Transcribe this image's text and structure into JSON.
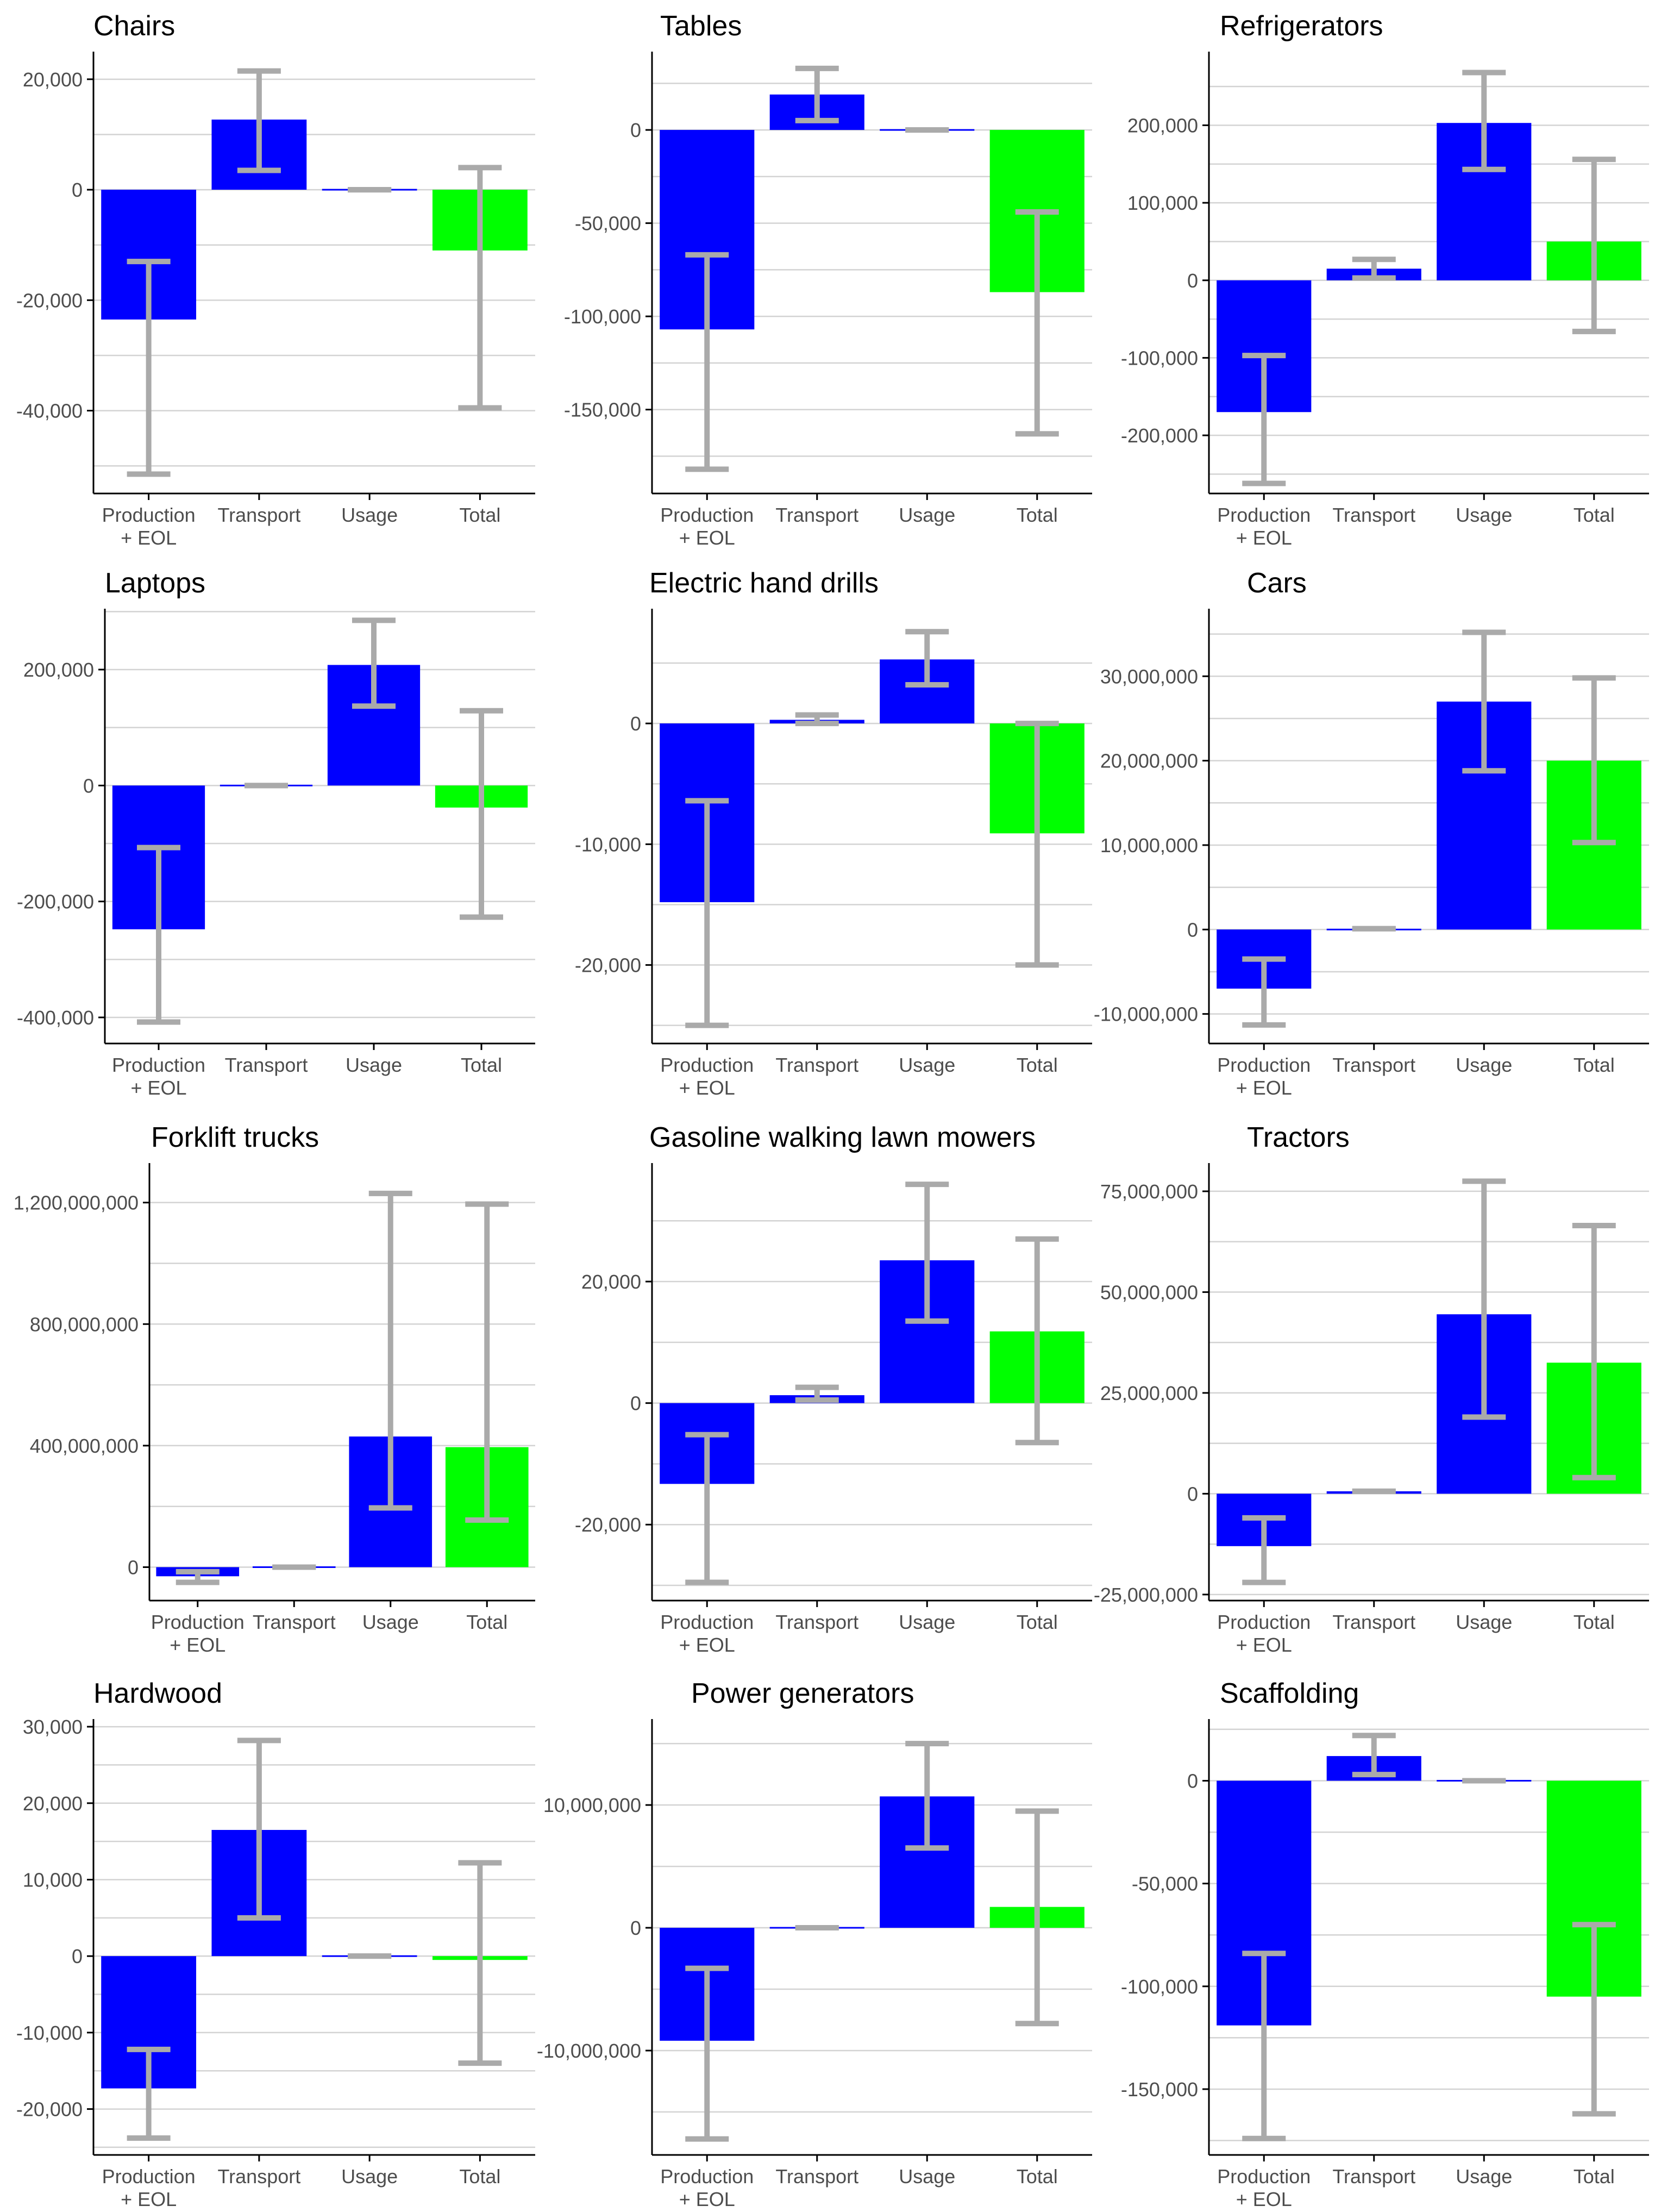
{
  "chart_data": [
    {
      "type": "bar",
      "title": "Chairs",
      "categories": [
        "Production\n+ EOL",
        "Transport",
        "Usage",
        "Total"
      ],
      "values": [
        -23500,
        12700,
        0,
        -11000
      ],
      "error_low": [
        -51500,
        3500,
        0,
        -39500
      ],
      "error_high": [
        -13000,
        21500,
        0,
        4000
      ],
      "colors": [
        "#0000ff",
        "#0000ff",
        "#0000ff",
        "#00ff00"
      ],
      "yticks": [
        -40000,
        -20000,
        0,
        20000
      ],
      "ytick_labels": [
        "-40,000",
        "-20,000",
        "0",
        "20,000"
      ],
      "ylim": [
        -55000,
        25000
      ]
    },
    {
      "type": "bar",
      "title": "Tables",
      "categories": [
        "Production\n+ EOL",
        "Transport",
        "Usage",
        "Total"
      ],
      "values": [
        -107000,
        19000,
        0,
        -87000
      ],
      "error_low": [
        -182000,
        5000,
        0,
        -163000
      ],
      "error_high": [
        -67000,
        33000,
        0,
        -44000
      ],
      "colors": [
        "#0000ff",
        "#0000ff",
        "#0000ff",
        "#00ff00"
      ],
      "yticks": [
        -150000,
        -100000,
        -50000,
        0
      ],
      "ytick_labels": [
        "-150,000",
        "-100,000",
        "-50,000",
        "0"
      ],
      "ylim": [
        -195000,
        42000
      ]
    },
    {
      "type": "bar",
      "title": "Refrigerators",
      "categories": [
        "Production\n+ EOL",
        "Transport",
        "Usage",
        "Total"
      ],
      "values": [
        -170000,
        15000,
        203000,
        50000
      ],
      "error_low": [
        -262000,
        3000,
        143000,
        -66000
      ],
      "error_high": [
        -97000,
        27000,
        268000,
        156000
      ],
      "colors": [
        "#0000ff",
        "#0000ff",
        "#0000ff",
        "#00ff00"
      ],
      "yticks": [
        -200000,
        -100000,
        0,
        100000,
        200000
      ],
      "ytick_labels": [
        "-200,000",
        "-100,000",
        "0",
        "100,000",
        "200,000"
      ],
      "ylim": [
        -275000,
        295000
      ]
    },
    {
      "type": "bar",
      "title": "Laptops",
      "categories": [
        "Production\n+ EOL",
        "Transport",
        "Usage",
        "Total"
      ],
      "values": [
        -248000,
        0,
        208000,
        -38000
      ],
      "error_low": [
        -408000,
        0,
        137000,
        -227000
      ],
      "error_high": [
        -107000,
        0,
        285000,
        129000
      ],
      "colors": [
        "#0000ff",
        "#0000ff",
        "#0000ff",
        "#00ff00"
      ],
      "yticks": [
        -400000,
        -200000,
        0,
        200000
      ],
      "ytick_labels": [
        "-400,000",
        "-200,000",
        "0",
        "200,000"
      ],
      "ylim": [
        -445000,
        305000
      ]
    },
    {
      "type": "bar",
      "title": "Electric hand drills",
      "categories": [
        "Production\n+ EOL",
        "Transport",
        "Usage",
        "Total"
      ],
      "values": [
        -14800,
        300,
        5300,
        -9100
      ],
      "error_low": [
        -25000,
        0,
        3200,
        -20000
      ],
      "error_high": [
        -6400,
        700,
        7600,
        0
      ],
      "colors": [
        "#0000ff",
        "#0000ff",
        "#0000ff",
        "#00ff00"
      ],
      "yticks": [
        -20000,
        -10000,
        0
      ],
      "ytick_labels": [
        "-20,000",
        "-10,000",
        "0"
      ],
      "ylim": [
        -26500,
        9500
      ]
    },
    {
      "type": "bar",
      "title": "Cars",
      "categories": [
        "Production\n+ EOL",
        "Transport",
        "Usage",
        "Total"
      ],
      "values": [
        -7000000,
        100000,
        27000000,
        20000000
      ],
      "error_low": [
        -11300000,
        100000,
        18800000,
        10300000
      ],
      "error_high": [
        -3500000,
        100000,
        35200000,
        29800000
      ],
      "colors": [
        "#0000ff",
        "#0000ff",
        "#0000ff",
        "#00ff00"
      ],
      "yticks": [
        -10000000,
        0,
        10000000,
        20000000,
        30000000
      ],
      "ytick_labels": [
        "-10,000,000",
        "0",
        "10,000,000",
        "20,000,000",
        "30,000,000"
      ],
      "ylim": [
        -13500000,
        38000000
      ]
    },
    {
      "type": "bar",
      "title": "Forklift trucks",
      "categories": [
        "Production\n+ EOL",
        "Transport",
        "Usage",
        "Total"
      ],
      "values": [
        -30000000,
        0,
        430000000,
        395000000
      ],
      "error_low": [
        -50000000,
        0,
        195000000,
        155000000
      ],
      "error_high": [
        -15000000,
        0,
        1230000000,
        1195000000
      ],
      "colors": [
        "#0000ff",
        "#0000ff",
        "#0000ff",
        "#00ff00"
      ],
      "yticks": [
        0,
        400000000,
        800000000,
        1200000000
      ],
      "ytick_labels": [
        "0",
        "400,000,000",
        "800,000,000",
        "1,200,000,000"
      ],
      "ylim": [
        -110000000,
        1330000000
      ]
    },
    {
      "type": "bar",
      "title": "Gasoline walking lawn mowers",
      "categories": [
        "Production\n+ EOL",
        "Transport",
        "Usage",
        "Total"
      ],
      "values": [
        -13300,
        1300,
        23500,
        11800
      ],
      "error_low": [
        -29500,
        500,
        13500,
        -6500
      ],
      "error_high": [
        -5200,
        2600,
        36000,
        27000
      ],
      "colors": [
        "#0000ff",
        "#0000ff",
        "#0000ff",
        "#00ff00"
      ],
      "yticks": [
        -20000,
        0,
        20000
      ],
      "ytick_labels": [
        "-20,000",
        "0",
        "20,000"
      ],
      "ylim": [
        -32500,
        39500
      ]
    },
    {
      "type": "bar",
      "title": "Tractors",
      "categories": [
        "Production\n+ EOL",
        "Transport",
        "Usage",
        "Total"
      ],
      "values": [
        -13000000,
        600000,
        44500000,
        32500000
      ],
      "error_low": [
        -22000000,
        600000,
        19000000,
        4000000
      ],
      "error_high": [
        -6000000,
        600000,
        77500000,
        66500000
      ],
      "colors": [
        "#0000ff",
        "#0000ff",
        "#0000ff",
        "#00ff00"
      ],
      "yticks": [
        -25000000,
        0,
        25000000,
        50000000,
        75000000
      ],
      "ytick_labels": [
        "-25,000,000",
        "0",
        "25,000,000",
        "50,000,000",
        "75,000,000"
      ],
      "ylim": [
        -26500000,
        82000000
      ]
    },
    {
      "type": "bar",
      "title": "Hardwood",
      "categories": [
        "Production\n+ EOL",
        "Transport",
        "Usage",
        "Total"
      ],
      "values": [
        -17300,
        16500,
        0,
        -500
      ],
      "error_low": [
        -23800,
        5000,
        0,
        -14000
      ],
      "error_high": [
        -12200,
        28200,
        0,
        12200
      ],
      "colors": [
        "#0000ff",
        "#0000ff",
        "#0000ff",
        "#00ff00"
      ],
      "yticks": [
        -20000,
        -10000,
        0,
        10000,
        20000,
        30000
      ],
      "ytick_labels": [
        "-20,000",
        "-10,000",
        "0",
        "10,000",
        "20,000",
        "30,000"
      ],
      "ylim": [
        -26000,
        31000
      ]
    },
    {
      "type": "bar",
      "title": "Power generators",
      "categories": [
        "Production\n+ EOL",
        "Transport",
        "Usage",
        "Total"
      ],
      "values": [
        -9200000,
        0,
        10700000,
        1700000
      ],
      "error_low": [
        -17200000,
        0,
        6500000,
        -7800000
      ],
      "error_high": [
        -3300000,
        0,
        15000000,
        9500000
      ],
      "colors": [
        "#0000ff",
        "#0000ff",
        "#0000ff",
        "#00ff00"
      ],
      "yticks": [
        -10000000,
        0,
        10000000
      ],
      "ytick_labels": [
        "-10,000,000",
        "0",
        "10,000,000"
      ],
      "ylim": [
        -18500000,
        17000000
      ]
    },
    {
      "type": "bar",
      "title": "Scaffolding",
      "categories": [
        "Production\n+ EOL",
        "Transport",
        "Usage",
        "Total"
      ],
      "values": [
        -119000,
        12000,
        0,
        -105000
      ],
      "error_low": [
        -174000,
        3000,
        0,
        -162000
      ],
      "error_high": [
        -84000,
        22000,
        0,
        -70000
      ],
      "colors": [
        "#0000ff",
        "#0000ff",
        "#0000ff",
        "#00ff00"
      ],
      "yticks": [
        -150000,
        -100000,
        -50000,
        0
      ],
      "ytick_labels": [
        "-150,000",
        "-100,000",
        "-50,000",
        "0"
      ],
      "ylim": [
        -182000,
        30000
      ]
    }
  ]
}
